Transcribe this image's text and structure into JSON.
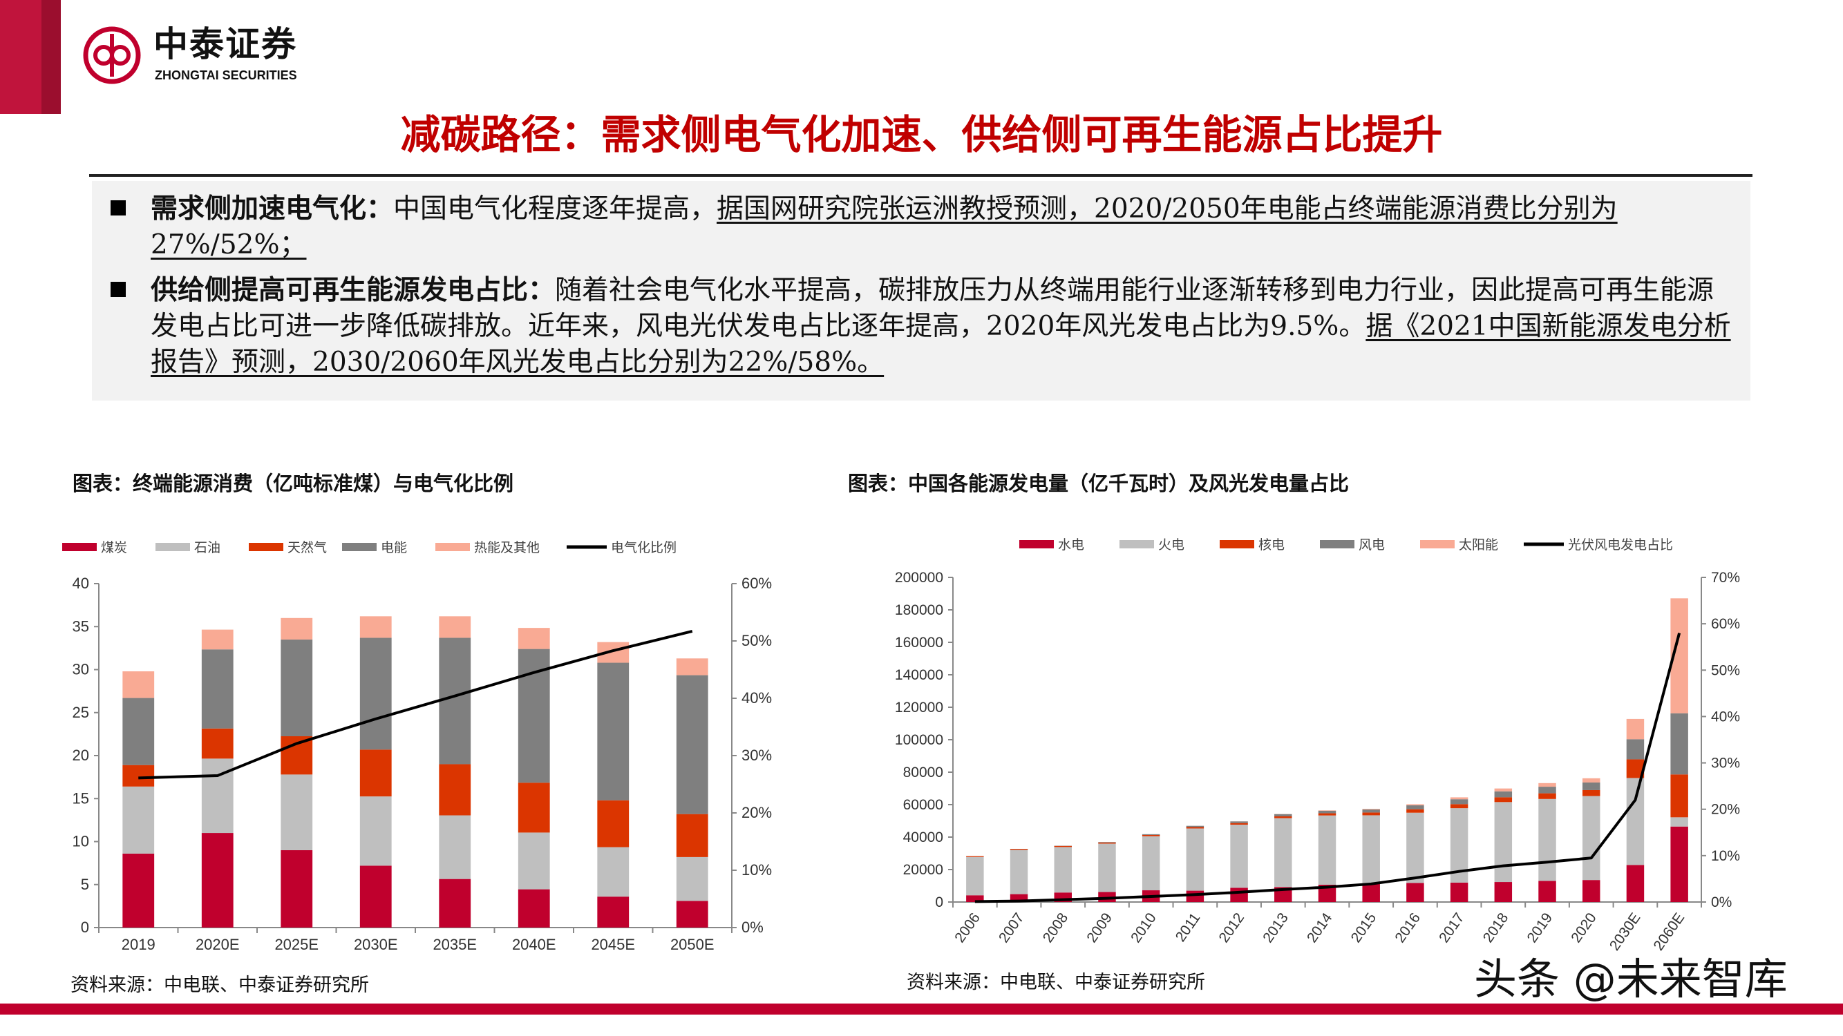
{
  "header": {
    "logo_cn": "中泰证券",
    "logo_en": "ZHONGTAI SECURITIES",
    "title": "减碳路径：需求侧电气化加速、供给侧可再生能源占比提升"
  },
  "bullets": [
    {
      "heading": "需求侧加速电气化：",
      "text": "中国电气化程度逐年提高，",
      "underlined": "据国网研究院张运洲教授预测，2020/2050年电能占终端能源消费比分别为27%/52%；"
    },
    {
      "heading": "供给侧提高可再生能源发电占比：",
      "text": "随着社会电气化水平提高，碳排放压力从终端用能行业逐渐转移到电力行业，因此提高可再生能源发电占比可进一步降低碳排放。近年来，风电光伏发电占比逐年提高，2020年风光发电占比为9.5%。",
      "underlined": "据《2021中国新能源发电分析报告》预测，2030/2060年风光发电占比分别为22%/58%。"
    }
  ],
  "footer": {
    "source_left": "资料来源：中电联、中泰证券研究所",
    "source_right": "资料来源：中电联、中泰证券研究所",
    "watermark": "头条 @未来智库",
    "accent": "#c0002d"
  },
  "chart_data": [
    {
      "type": "bar",
      "stacked": true,
      "title": "图表：终端能源消费（亿吨标准煤）与电气化比例",
      "categories": [
        "2019",
        "2020E",
        "2025E",
        "2030E",
        "2035E",
        "2040E",
        "2045E",
        "2050E"
      ],
      "ylim": [
        0,
        40
      ],
      "y_ticks": [
        "0",
        "5",
        "10",
        "15",
        "20",
        "25",
        "30",
        "35",
        "40"
      ],
      "y2lim": [
        0,
        60
      ],
      "y2_ticks": [
        "0%",
        "10%",
        "20%",
        "30%",
        "40%",
        "50%",
        "60%"
      ],
      "legend": "top",
      "grid": false,
      "series": [
        {
          "name": "煤炭",
          "color": "#c0002d",
          "values": [
            8.6,
            11.0,
            9.0,
            7.2,
            5.65,
            4.45,
            3.6,
            3.1
          ]
        },
        {
          "name": "石油",
          "color": "#bfbfbf",
          "values": [
            7.8,
            8.65,
            8.8,
            8.05,
            7.4,
            6.6,
            5.75,
            5.1
          ]
        },
        {
          "name": "天然气",
          "color": "#db3500",
          "values": [
            2.5,
            3.5,
            4.45,
            5.45,
            5.95,
            5.8,
            5.45,
            5.0
          ]
        },
        {
          "name": "电能",
          "color": "#7f7f7f",
          "values": [
            7.8,
            9.2,
            11.25,
            13.0,
            14.7,
            15.55,
            16.0,
            16.15
          ]
        },
        {
          "name": "热能及其他",
          "color": "#f9aa94",
          "values": [
            3.1,
            2.3,
            2.5,
            2.5,
            2.5,
            2.45,
            2.4,
            1.95
          ]
        }
      ],
      "line": {
        "name": "电气化比例",
        "color": "#000000",
        "axis": "right",
        "values": [
          26.1,
          26.5,
          32.1,
          36.4,
          40.4,
          44.5,
          48.3,
          51.7
        ]
      }
    },
    {
      "type": "bar",
      "stacked": true,
      "title": "图表：中国各能源发电量（亿千瓦时）及风光发电量占比",
      "categories": [
        "2006",
        "2007",
        "2008",
        "2009",
        "2010",
        "2011",
        "2012",
        "2013",
        "2014",
        "2015",
        "2016",
        "2017",
        "2018",
        "2019",
        "2020",
        "2030E",
        "2060E"
      ],
      "ylim": [
        0,
        200000
      ],
      "y_ticks": [
        "0",
        "20000",
        "40000",
        "60000",
        "80000",
        "100000",
        "120000",
        "140000",
        "160000",
        "180000",
        "200000"
      ],
      "y2lim": [
        0,
        70
      ],
      "y2_ticks": [
        "0%",
        "10%",
        "20%",
        "30%",
        "40%",
        "50%",
        "60%",
        "70%"
      ],
      "legend": "top",
      "grid": false,
      "series": [
        {
          "name": "水电",
          "color": "#c0002d",
          "values": [
            4148,
            4853,
            5852,
            6156,
            7222,
            6989,
            8721,
            9203,
            10643,
            11127,
            11748,
            11931,
            12321,
            13021,
            13552,
            22800,
            46500
          ]
        },
        {
          "name": "火电",
          "color": "#bfbfbf",
          "values": [
            23573,
            27229,
            28030,
            29828,
            33319,
            38337,
            38928,
            42470,
            42686,
            42307,
            43273,
            45877,
            49249,
            50465,
            51743,
            53600,
            5700
          ]
        },
        {
          "name": "核电",
          "color": "#db3500",
          "values": [
            548,
            621,
            692,
            700,
            747,
            872,
            983,
            1115,
            1332,
            1714,
            2132,
            2481,
            2950,
            3487,
            3662,
            11500,
            26400
          ]
        },
        {
          "name": "风电",
          "color": "#7f7f7f",
          "values": [
            28,
            57,
            131,
            276,
            494,
            741,
            1030,
            1383,
            1598,
            1856,
            2409,
            3034,
            3660,
            4057,
            4665,
            12400,
            37700
          ]
        },
        {
          "name": "太阳能",
          "color": "#f9aa94",
          "values": [
            0,
            0,
            0,
            0,
            1,
            6,
            36,
            84,
            235,
            395,
            665,
            1178,
            1769,
            2240,
            2611,
            12500,
            70800
          ]
        }
      ],
      "line": {
        "name": "光伏风电发电占比",
        "color": "#000000",
        "axis": "right",
        "values": [
          0.1,
          0.2,
          0.5,
          0.8,
          1.2,
          1.6,
          2.1,
          2.7,
          3.2,
          3.9,
          5.2,
          6.6,
          7.8,
          8.6,
          9.5,
          22,
          58
        ]
      }
    }
  ]
}
